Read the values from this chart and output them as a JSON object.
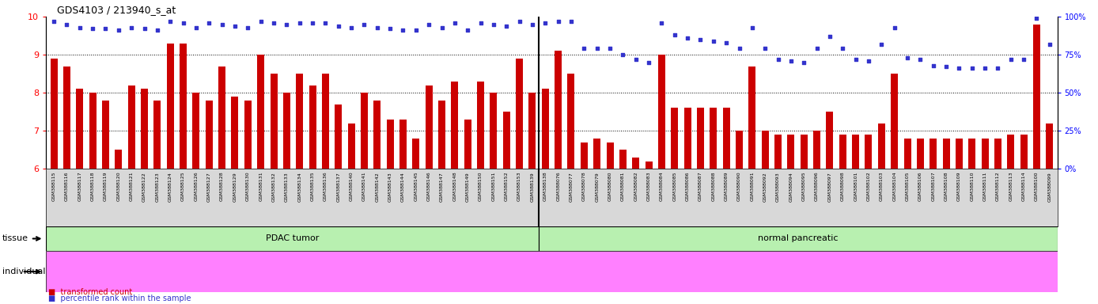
{
  "title": "GDS4103 / 213940_s_at",
  "ylim_left": [
    6,
    10
  ],
  "ylim_right": [
    0,
    100
  ],
  "yticks_left": [
    6,
    7,
    8,
    9,
    10
  ],
  "yticks_right": [
    0,
    25,
    50,
    75,
    100
  ],
  "bar_color": "#cc0000",
  "dot_color": "#3333cc",
  "pdac_samples": [
    "GSM388115",
    "GSM388116",
    "GSM388117",
    "GSM388118",
    "GSM388119",
    "GSM388120",
    "GSM388121",
    "GSM388122",
    "GSM388123",
    "GSM388124",
    "GSM388125",
    "GSM388126",
    "GSM388127",
    "GSM388128",
    "GSM388129",
    "GSM388130",
    "GSM388131",
    "GSM388132",
    "GSM388133",
    "GSM388134",
    "GSM388135",
    "GSM388136",
    "GSM388137",
    "GSM388140",
    "GSM388141",
    "GSM388142",
    "GSM388143",
    "GSM388144",
    "GSM388145",
    "GSM388146",
    "GSM388147",
    "GSM388148",
    "GSM388149",
    "GSM388150",
    "GSM388151",
    "GSM388152",
    "GSM388153",
    "GSM388139"
  ],
  "normal_samples": [
    "GSM388138",
    "GSM388076",
    "GSM388077",
    "GSM388078",
    "GSM388079",
    "GSM388080",
    "GSM388081",
    "GSM388082",
    "GSM388083",
    "GSM388084",
    "GSM388085",
    "GSM388086",
    "GSM388087",
    "GSM388088",
    "GSM388089",
    "GSM388090",
    "GSM388091",
    "GSM388092",
    "GSM388093",
    "GSM388094",
    "GSM388095",
    "GSM388096",
    "GSM388097",
    "GSM388098",
    "GSM388101",
    "GSM388102",
    "GSM388103",
    "GSM388104",
    "GSM388105",
    "GSM388106",
    "GSM388107",
    "GSM388108",
    "GSM388109",
    "GSM388110",
    "GSM388111",
    "GSM388112",
    "GSM388113",
    "GSM388114",
    "GSM388100",
    "GSM388099"
  ],
  "pdac_bar_values": [
    8.9,
    8.7,
    8.1,
    8.0,
    7.8,
    6.5,
    8.2,
    8.1,
    7.8,
    9.3,
    9.3,
    8.0,
    7.8,
    8.7,
    7.9,
    7.8,
    9.0,
    8.5,
    8.0,
    8.5,
    8.2,
    8.5,
    7.7,
    7.2,
    8.0,
    7.8,
    7.3,
    7.3,
    6.8,
    8.2,
    7.8,
    8.3,
    7.3,
    8.3,
    8.0,
    7.5,
    8.9,
    8.0
  ],
  "normal_bar_values": [
    8.1,
    9.1,
    8.5,
    6.7,
    6.8,
    6.7,
    6.5,
    6.3,
    6.2,
    9.0,
    7.6,
    7.6,
    7.6,
    7.6,
    7.6,
    7.0,
    8.7,
    7.0,
    6.9,
    6.9,
    6.9,
    7.0,
    7.5,
    6.9,
    6.9,
    6.9,
    7.2,
    8.5,
    6.8,
    6.8,
    6.8,
    6.8,
    6.8,
    6.8,
    6.8,
    6.8,
    6.9,
    6.9,
    9.8,
    7.2
  ],
  "pdac_dot_values": [
    97,
    95,
    93,
    92,
    92,
    91,
    93,
    92,
    91,
    97,
    96,
    93,
    96,
    95,
    94,
    93,
    97,
    96,
    95,
    96,
    96,
    96,
    94,
    93,
    95,
    93,
    92,
    91,
    91,
    95,
    93,
    96,
    91,
    96,
    95,
    94,
    97,
    95
  ],
  "normal_dot_values": [
    96,
    97,
    97,
    79,
    79,
    79,
    75,
    72,
    70,
    96,
    88,
    86,
    85,
    84,
    83,
    79,
    93,
    79,
    72,
    71,
    70,
    79,
    87,
    79,
    72,
    71,
    82,
    93,
    73,
    72,
    68,
    67,
    66,
    66,
    66,
    66,
    72,
    72,
    99,
    82
  ],
  "pdac_label": "PDAC tumor",
  "normal_label": "normal pancreatic",
  "bg_color": "#ffffff",
  "tissue_green": "#b8f0b0",
  "indiv_pink": "#ff80ff",
  "xtick_bg": "#d8d8d8",
  "legend_bar_label": "transformed count",
  "legend_dot_label": "percentile rank within the sample"
}
